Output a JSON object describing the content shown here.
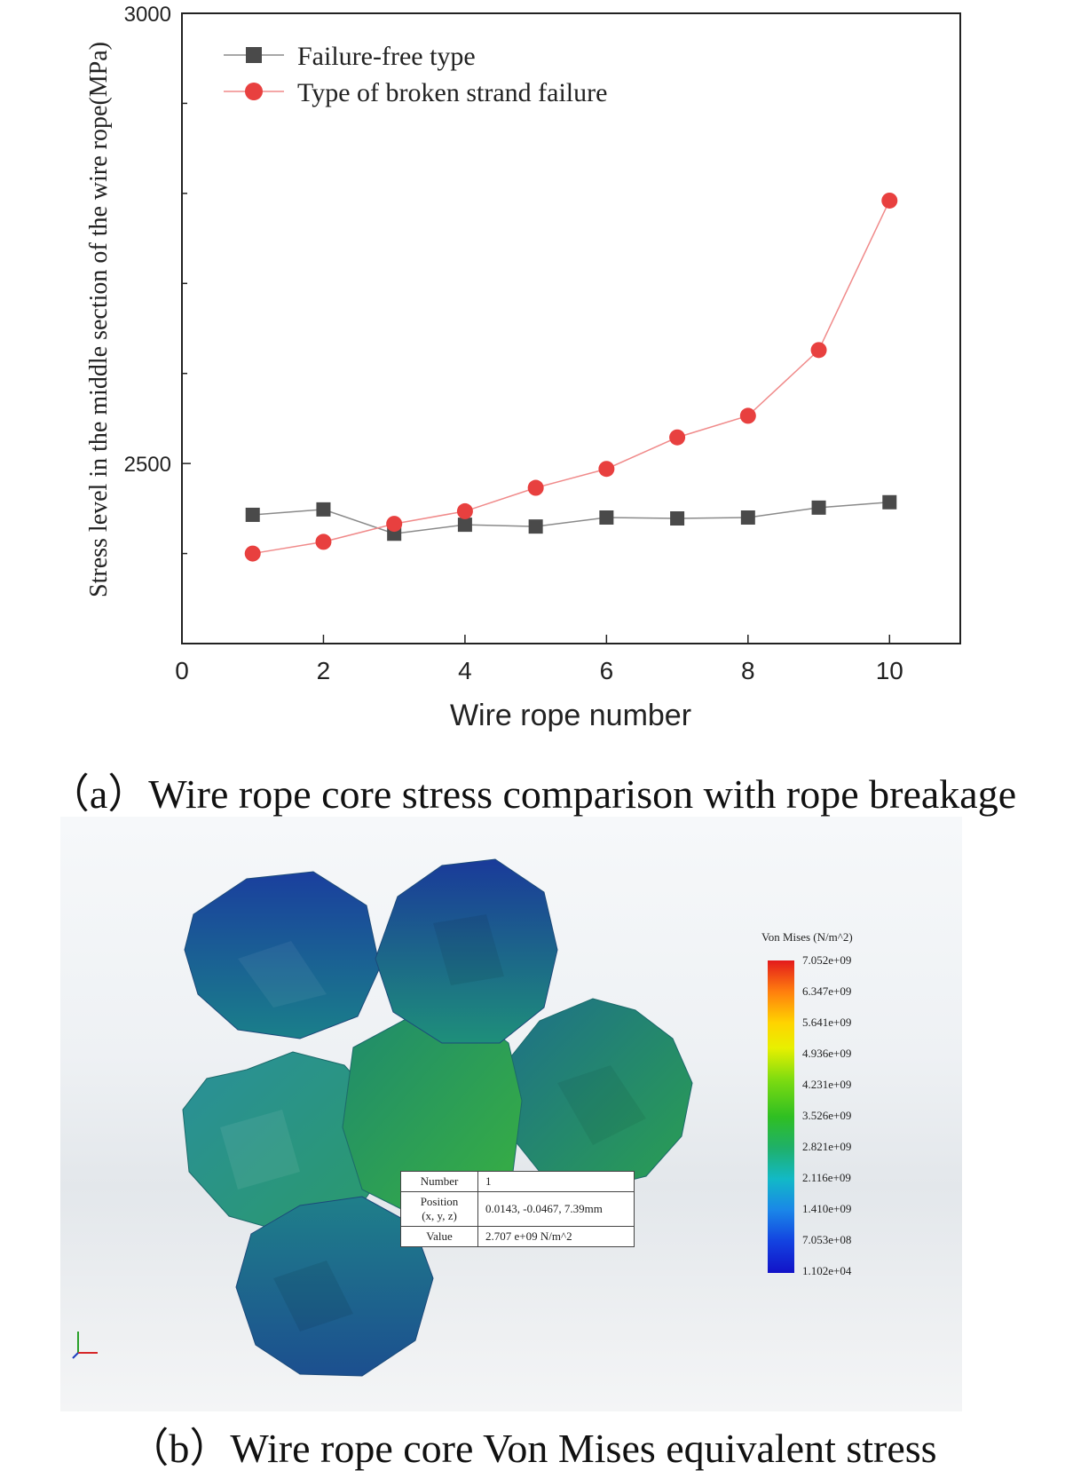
{
  "chart_data": {
    "type": "line",
    "xlabel": "Wire rope number",
    "ylabel": "Stress level in the middle section of the wire rope(MPa)",
    "xlim": [
      0,
      11
    ],
    "ylim": [
      2300,
      3000
    ],
    "x_ticks": [
      "0",
      "2",
      "4",
      "6",
      "8",
      "10"
    ],
    "y_ticks": [
      "2500",
      "3000"
    ],
    "legend_position": "top-left",
    "x": [
      1,
      2,
      3,
      4,
      5,
      6,
      7,
      8,
      9,
      10
    ],
    "series": [
      {
        "name": "Failure-free type",
        "marker": "square",
        "color": "#4a4a4a",
        "values": [
          2443,
          2449,
          2422,
          2432,
          2430,
          2440,
          2439,
          2440,
          2451,
          2457
        ]
      },
      {
        "name": "Type of broken strand failure",
        "marker": "circle",
        "color": "#e8403f",
        "values": [
          2400,
          2413,
          2433,
          2447,
          2473,
          2494,
          2529,
          2553,
          2626,
          2792
        ]
      }
    ]
  },
  "captions": {
    "a": "（a）Wire rope core stress comparison with rope breakage",
    "b": "（b）Wire rope core Von Mises equivalent stress"
  },
  "simulation": {
    "legend_title": "Von Mises (N/m^2)",
    "colorbar_labels": [
      "7.052e+09",
      "6.347e+09",
      "5.641e+09",
      "4.936e+09",
      "4.231e+09",
      "3.526e+09",
      "2.821e+09",
      "2.116e+09",
      "1.410e+09",
      "7.053e+08",
      "1.102e+04"
    ],
    "colorbar_colors": {
      "max": "#e31a1c",
      "mid": "#2fbf22",
      "min": "#1212c8"
    },
    "probe": {
      "number_label": "Number",
      "number_value": "1",
      "position_label": "Position",
      "position_sub": "(x, y, z)",
      "position_value": "0.0143, -0.0467, 7.39mm",
      "value_label": "Value",
      "value_value": "2.707 e+09 N/m^2"
    }
  }
}
